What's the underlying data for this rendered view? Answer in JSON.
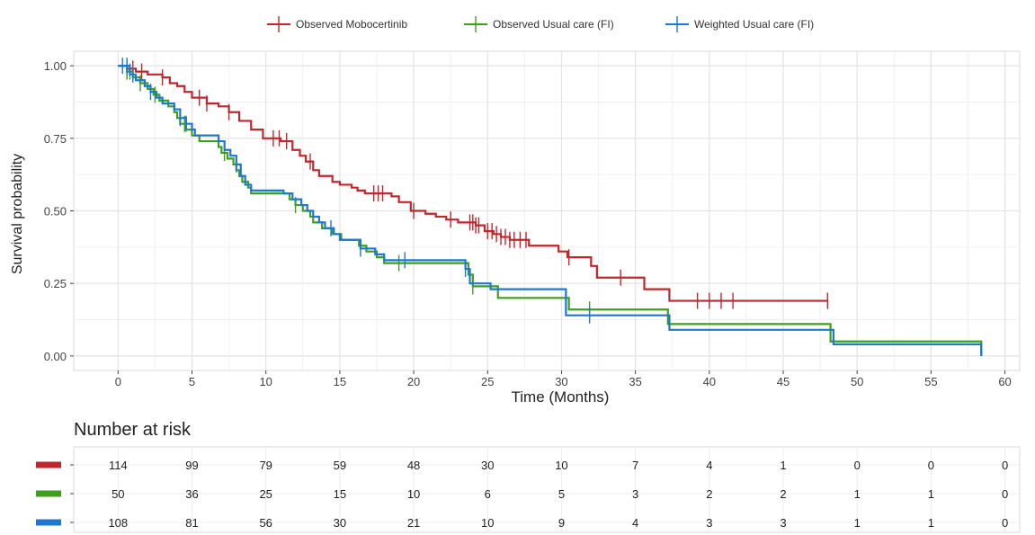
{
  "chart_data": {
    "type": "line",
    "subtype": "kaplan-meier",
    "xlabel": "Time (Months)",
    "ylabel": "Survival probability",
    "xlim": [
      -3,
      61
    ],
    "ylim": [
      -0.05,
      1.05
    ],
    "x_ticks": [
      0,
      5,
      10,
      15,
      20,
      25,
      30,
      35,
      40,
      45,
      50,
      55,
      60
    ],
    "y_ticks": [
      0.0,
      0.25,
      0.5,
      0.75,
      1.0
    ],
    "y_tick_labels": [
      "0.00",
      "0.25",
      "0.50",
      "0.75",
      "1.00"
    ],
    "grid": true,
    "legend_position": "top",
    "series": [
      {
        "name": "Observed Mobocertinib",
        "color": "#c0272d",
        "steps": [
          [
            0,
            1.0
          ],
          [
            0.6,
            0.99
          ],
          [
            1.2,
            0.98
          ],
          [
            2.0,
            0.97
          ],
          [
            3.0,
            0.96
          ],
          [
            3.5,
            0.94
          ],
          [
            4.0,
            0.93
          ],
          [
            4.5,
            0.91
          ],
          [
            5.0,
            0.89
          ],
          [
            6.0,
            0.87
          ],
          [
            6.8,
            0.86
          ],
          [
            7.5,
            0.84
          ],
          [
            8.2,
            0.81
          ],
          [
            9.0,
            0.78
          ],
          [
            9.8,
            0.75
          ],
          [
            11.0,
            0.74
          ],
          [
            11.8,
            0.71
          ],
          [
            12.3,
            0.69
          ],
          [
            12.7,
            0.67
          ],
          [
            13.2,
            0.64
          ],
          [
            13.6,
            0.62
          ],
          [
            14.5,
            0.6
          ],
          [
            15.0,
            0.59
          ],
          [
            15.8,
            0.58
          ],
          [
            16.2,
            0.57
          ],
          [
            16.7,
            0.56
          ],
          [
            18.5,
            0.55
          ],
          [
            19.0,
            0.53
          ],
          [
            19.8,
            0.5
          ],
          [
            20.8,
            0.49
          ],
          [
            21.5,
            0.48
          ],
          [
            22.2,
            0.47
          ],
          [
            23.0,
            0.46
          ],
          [
            24.2,
            0.45
          ],
          [
            24.8,
            0.43
          ],
          [
            25.4,
            0.42
          ],
          [
            25.9,
            0.41
          ],
          [
            26.5,
            0.4
          ],
          [
            27.8,
            0.38
          ],
          [
            29.8,
            0.36
          ],
          [
            30.4,
            0.34
          ],
          [
            32.0,
            0.31
          ],
          [
            32.4,
            0.27
          ],
          [
            35.6,
            0.23
          ],
          [
            37.3,
            0.19
          ],
          [
            48.0,
            0.19
          ]
        ],
        "censor": [
          0.6,
          1.0,
          1.6,
          3.0,
          5.5,
          6.0,
          7.5,
          10.5,
          10.9,
          11.4,
          13.0,
          17.3,
          17.6,
          17.9,
          20.0,
          22.5,
          23.8,
          24.0,
          24.2,
          24.4,
          25.0,
          25.3,
          25.6,
          25.9,
          26.2,
          26.5,
          26.8,
          27.2,
          27.6,
          30.5,
          34.0,
          39.2,
          40.0,
          40.8,
          41.6,
          48.0
        ]
      },
      {
        "name": "Observed Usual care (FI)",
        "color": "#3e9e1e",
        "steps": [
          [
            0,
            1.0
          ],
          [
            0.6,
            0.98
          ],
          [
            1.0,
            0.96
          ],
          [
            1.5,
            0.94
          ],
          [
            2.0,
            0.92
          ],
          [
            2.4,
            0.9
          ],
          [
            2.8,
            0.88
          ],
          [
            3.4,
            0.86
          ],
          [
            3.8,
            0.84
          ],
          [
            4.0,
            0.82
          ],
          [
            4.2,
            0.8
          ],
          [
            4.6,
            0.78
          ],
          [
            5.0,
            0.76
          ],
          [
            5.5,
            0.74
          ],
          [
            6.8,
            0.72
          ],
          [
            7.0,
            0.7
          ],
          [
            7.4,
            0.68
          ],
          [
            7.8,
            0.66
          ],
          [
            8.0,
            0.64
          ],
          [
            8.2,
            0.62
          ],
          [
            8.4,
            0.6
          ],
          [
            8.8,
            0.58
          ],
          [
            9.0,
            0.56
          ],
          [
            11.6,
            0.54
          ],
          [
            12.0,
            0.52
          ],
          [
            12.5,
            0.5
          ],
          [
            13.0,
            0.48
          ],
          [
            13.2,
            0.46
          ],
          [
            13.8,
            0.44
          ],
          [
            14.5,
            0.42
          ],
          [
            15.1,
            0.4
          ],
          [
            16.3,
            0.38
          ],
          [
            16.8,
            0.36
          ],
          [
            17.5,
            0.34
          ],
          [
            18.0,
            0.32
          ],
          [
            23.7,
            0.28
          ],
          [
            24.0,
            0.24
          ],
          [
            25.7,
            0.2
          ],
          [
            30.5,
            0.16
          ],
          [
            37.2,
            0.11
          ],
          [
            48.2,
            0.05
          ],
          [
            58.4,
            0.05
          ],
          [
            58.4,
            0.0
          ]
        ],
        "censor": [
          0.6,
          0.8,
          1.5,
          2.5,
          4.5,
          7.2,
          12.0,
          19.0,
          24.0,
          31.9
        ]
      },
      {
        "name": "Weighted Usual care (FI)",
        "color": "#1f78cf",
        "steps": [
          [
            0,
            1.0
          ],
          [
            0.8,
            0.97
          ],
          [
            1.2,
            0.95
          ],
          [
            1.8,
            0.93
          ],
          [
            2.2,
            0.91
          ],
          [
            2.6,
            0.89
          ],
          [
            3.0,
            0.87
          ],
          [
            3.8,
            0.85
          ],
          [
            4.2,
            0.82
          ],
          [
            4.6,
            0.8
          ],
          [
            5.0,
            0.78
          ],
          [
            5.2,
            0.76
          ],
          [
            6.8,
            0.74
          ],
          [
            7.2,
            0.71
          ],
          [
            7.6,
            0.69
          ],
          [
            8.0,
            0.66
          ],
          [
            8.3,
            0.62
          ],
          [
            8.6,
            0.59
          ],
          [
            9.0,
            0.57
          ],
          [
            11.2,
            0.56
          ],
          [
            11.8,
            0.54
          ],
          [
            12.4,
            0.52
          ],
          [
            12.8,
            0.5
          ],
          [
            13.2,
            0.48
          ],
          [
            13.6,
            0.46
          ],
          [
            14.0,
            0.44
          ],
          [
            14.6,
            0.42
          ],
          [
            15.0,
            0.4
          ],
          [
            16.4,
            0.37
          ],
          [
            17.4,
            0.35
          ],
          [
            18.0,
            0.33
          ],
          [
            23.5,
            0.3
          ],
          [
            23.8,
            0.25
          ],
          [
            25.2,
            0.23
          ],
          [
            30.3,
            0.14
          ],
          [
            37.3,
            0.09
          ],
          [
            48.4,
            0.04
          ],
          [
            58.4,
            0.04
          ],
          [
            58.4,
            0.0
          ]
        ],
        "censor": [
          0.3,
          0.6,
          1.0,
          2.2,
          4.2,
          4.6,
          8.0,
          14.4,
          16.4,
          19.4,
          23.5,
          31.9
        ]
      }
    ],
    "risk_table": {
      "title": "Number at risk",
      "times": [
        0,
        5,
        10,
        15,
        20,
        25,
        30,
        35,
        40,
        45,
        50,
        55,
        60
      ],
      "rows": [
        {
          "color": "#c0272d",
          "values": [
            "114",
            "99",
            "79",
            "59",
            "48",
            "30",
            "10",
            "7",
            "4",
            "1",
            "0",
            "0",
            "0"
          ]
        },
        {
          "color": "#3e9e1e",
          "values": [
            "50",
            "36",
            "25",
            "15",
            "10",
            "6",
            "5",
            "3",
            "2",
            "2",
            "1",
            "1",
            "0"
          ]
        },
        {
          "color": "#1f78cf",
          "values": [
            "108",
            "81",
            "56",
            "30",
            "21",
            "10",
            "9",
            "4",
            "3",
            "3",
            "1",
            "1",
            "0"
          ]
        }
      ]
    }
  }
}
